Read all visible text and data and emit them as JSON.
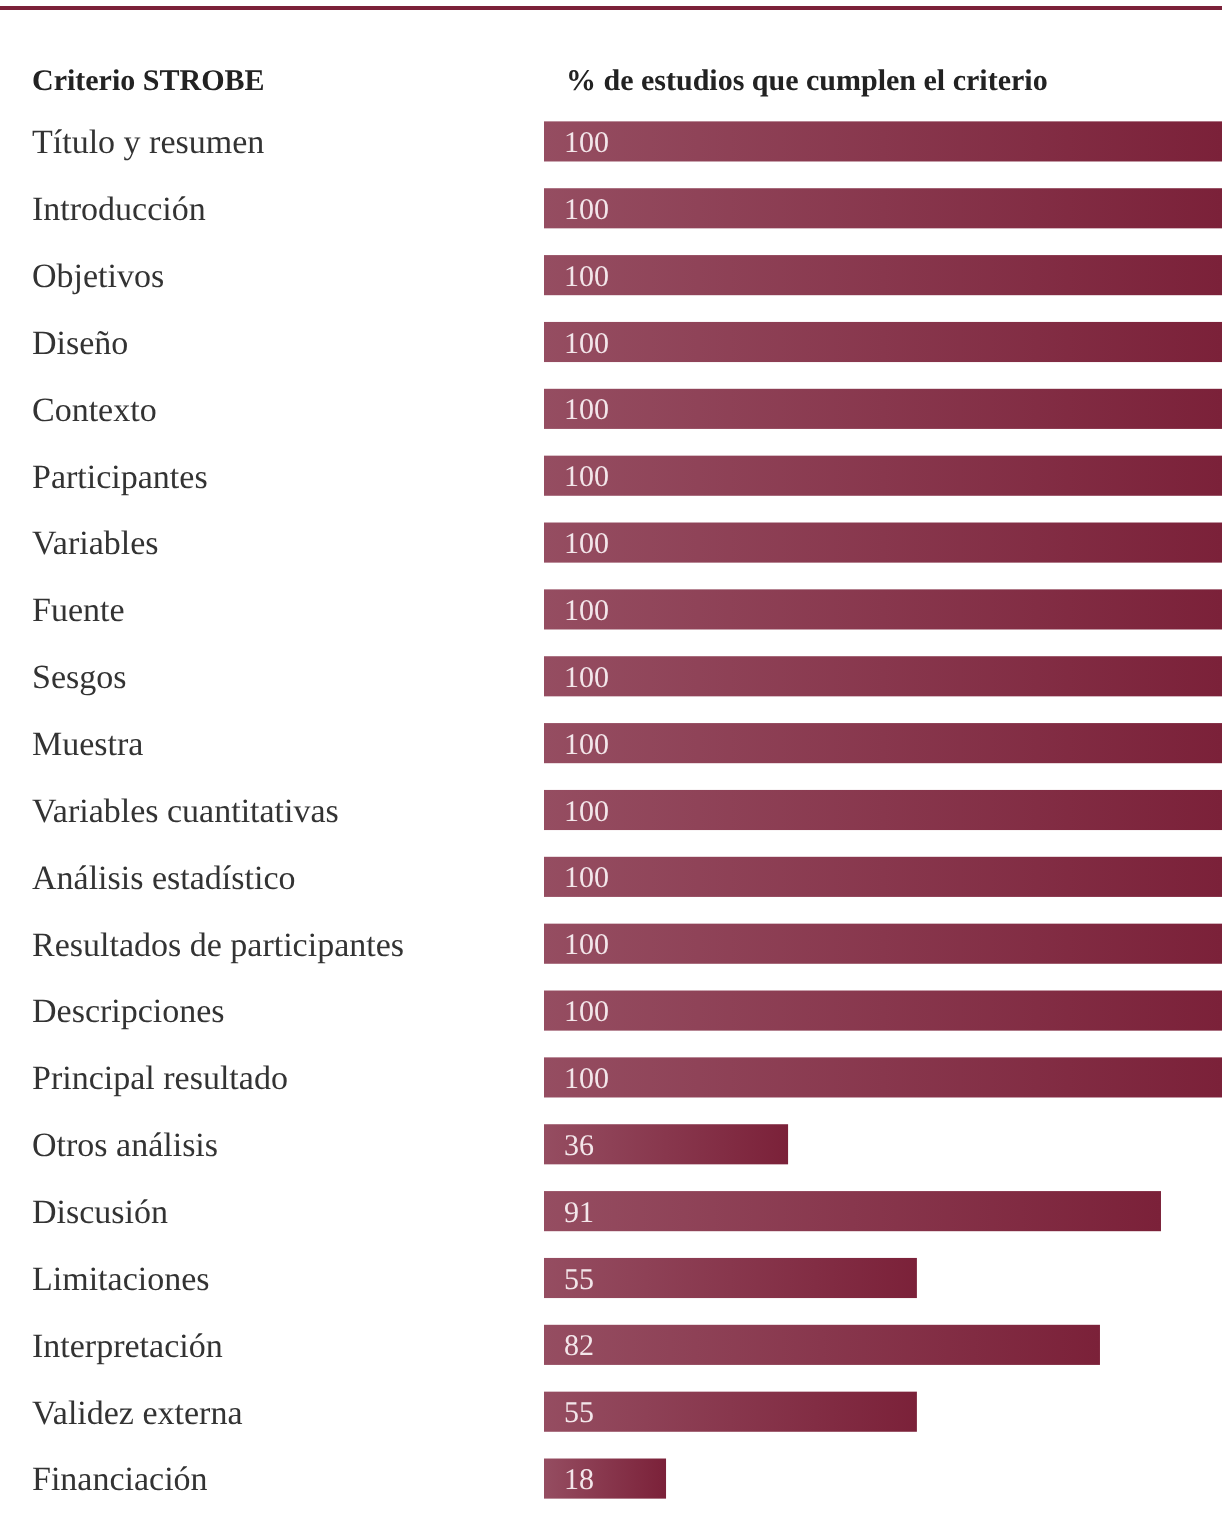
{
  "chart_data": {
    "type": "bar",
    "orientation": "horizontal",
    "ylabel": "Criterio STROBE",
    "xlabel": "% de estudios que cumplen el criterio",
    "categories": [
      "Título y resumen",
      "Introducción",
      "Objetivos",
      "Diseño",
      "Contexto",
      "Participantes",
      "Variables",
      "Fuente",
      "Sesgos",
      "Muestra",
      "Variables cuantitativas",
      "Análisis estadístico",
      "Resultados de participantes",
      "Descripciones",
      "Principal resultado",
      "Otros análisis",
      "Discusión",
      "Limitaciones",
      "Interpretación",
      "Validez externa",
      "Financiación"
    ],
    "values": [
      100,
      100,
      100,
      100,
      100,
      100,
      100,
      100,
      100,
      100,
      100,
      100,
      100,
      100,
      100,
      36,
      91,
      55,
      82,
      55,
      18
    ],
    "color": "#7b2139",
    "data_labels": true,
    "relative": false
  }
}
